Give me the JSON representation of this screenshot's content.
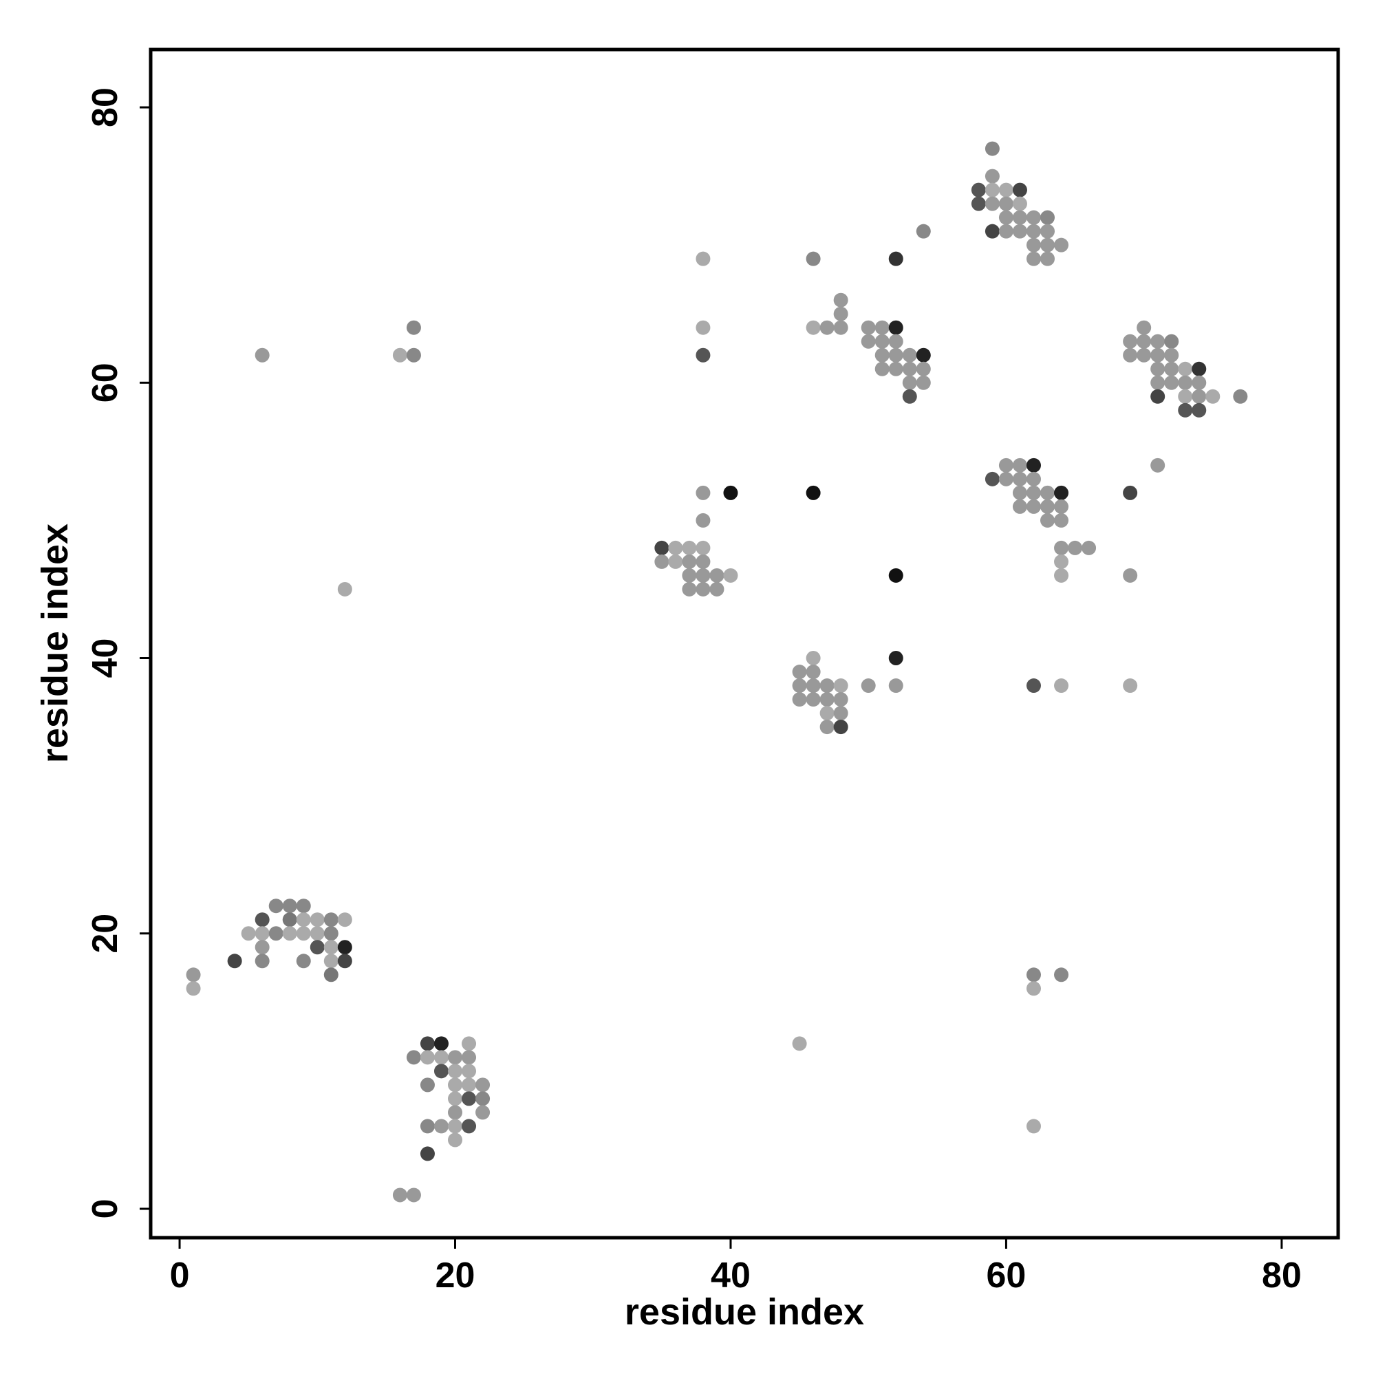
{
  "chart_data": {
    "type": "scatter",
    "xlabel": "residue index",
    "ylabel": "residue index",
    "xlim": [
      -2.1,
      84.1
    ],
    "ylim": [
      -2.1,
      84.2
    ],
    "xticks": [
      0,
      20,
      40,
      60,
      80
    ],
    "yticks": [
      0,
      20,
      40,
      60,
      80
    ],
    "x": [
      59,
      59,
      58,
      59,
      60,
      61,
      58,
      59,
      60,
      61,
      60,
      61,
      62,
      63,
      54,
      59,
      60,
      61,
      62,
      63,
      62,
      63,
      64,
      38,
      46,
      52,
      62,
      63,
      48,
      48,
      17,
      38,
      46,
      47,
      48,
      50,
      51,
      52,
      70,
      50,
      51,
      52,
      69,
      70,
      71,
      72,
      6,
      16,
      17,
      38,
      51,
      52,
      53,
      54,
      69,
      70,
      71,
      72,
      51,
      52,
      53,
      54,
      71,
      72,
      73,
      74,
      53,
      54,
      71,
      72,
      73,
      74,
      53,
      71,
      73,
      74,
      75,
      77,
      73,
      74,
      60,
      61,
      62,
      71,
      59,
      60,
      61,
      62,
      38,
      40,
      46,
      61,
      62,
      63,
      64,
      69,
      61,
      62,
      63,
      64,
      38,
      63,
      64,
      35,
      36,
      37,
      38,
      64,
      65,
      66,
      35,
      36,
      37,
      38,
      64,
      37,
      38,
      39,
      40,
      52,
      64,
      69,
      12,
      37,
      38,
      39,
      46,
      52,
      45,
      46,
      45,
      46,
      47,
      48,
      50,
      52,
      62,
      64,
      69,
      45,
      46,
      47,
      48,
      47,
      48,
      47,
      48,
      7,
      8,
      9,
      6,
      8,
      9,
      10,
      11,
      12,
      5,
      6,
      7,
      8,
      9,
      10,
      11,
      6,
      10,
      11,
      12,
      4,
      6,
      9,
      11,
      12,
      1,
      11,
      62,
      64,
      1,
      62,
      18,
      19,
      21,
      45,
      17,
      18,
      19,
      20,
      21,
      19,
      20,
      21,
      18,
      20,
      21,
      22,
      20,
      21,
      22,
      20,
      22,
      18,
      19,
      20,
      21,
      62,
      20,
      18,
      16,
      17
    ],
    "values": [
      77,
      75,
      74,
      74,
      74,
      74,
      73,
      73,
      73,
      73,
      72,
      72,
      72,
      72,
      71,
      71,
      71,
      71,
      71,
      71,
      70,
      70,
      70,
      69,
      69,
      69,
      69,
      69,
      66,
      65,
      64,
      64,
      64,
      64,
      64,
      64,
      64,
      64,
      64,
      63,
      63,
      63,
      63,
      63,
      63,
      63,
      62,
      62,
      62,
      62,
      62,
      62,
      62,
      62,
      62,
      62,
      62,
      62,
      61,
      61,
      61,
      61,
      61,
      61,
      61,
      61,
      60,
      60,
      60,
      60,
      60,
      60,
      59,
      59,
      59,
      59,
      59,
      59,
      58,
      58,
      54,
      54,
      54,
      54,
      53,
      53,
      53,
      53,
      52,
      52,
      52,
      52,
      52,
      52,
      52,
      52,
      51,
      51,
      51,
      51,
      50,
      50,
      50,
      48,
      48,
      48,
      48,
      48,
      48,
      48,
      47,
      47,
      47,
      47,
      47,
      46,
      46,
      46,
      46,
      46,
      46,
      46,
      45,
      45,
      45,
      45,
      40,
      40,
      39,
      39,
      38,
      38,
      38,
      38,
      38,
      38,
      38,
      38,
      38,
      37,
      37,
      37,
      37,
      36,
      36,
      35,
      35,
      22,
      22,
      22,
      21,
      21,
      21,
      21,
      21,
      21,
      20,
      20,
      20,
      20,
      20,
      20,
      20,
      19,
      19,
      19,
      19,
      18,
      18,
      18,
      18,
      18,
      17,
      17,
      17,
      17,
      16,
      16,
      12,
      12,
      12,
      12,
      11,
      11,
      11,
      11,
      11,
      10,
      10,
      10,
      9,
      9,
      9,
      9,
      8,
      8,
      8,
      7,
      7,
      6,
      6,
      6,
      6,
      6,
      5,
      4,
      1,
      1
    ],
    "colors": [
      "#888",
      "#999",
      "#555",
      "#aaa",
      "#aaa",
      "#444",
      "#555",
      "#999",
      "#999",
      "#aaa",
      "#999",
      "#999",
      "#999",
      "#888",
      "#888",
      "#444",
      "#999",
      "#999",
      "#999",
      "#999",
      "#999",
      "#999",
      "#999",
      "#aaa",
      "#888",
      "#333",
      "#999",
      "#999",
      "#999",
      "#999",
      "#888",
      "#aaa",
      "#aaa",
      "#999",
      "#999",
      "#999",
      "#999",
      "#222",
      "#999",
      "#999",
      "#999",
      "#999",
      "#999",
      "#999",
      "#999",
      "#888",
      "#999",
      "#aaa",
      "#888",
      "#555",
      "#999",
      "#999",
      "#999",
      "#222",
      "#999",
      "#999",
      "#999",
      "#999",
      "#999",
      "#999",
      "#999",
      "#999",
      "#999",
      "#999",
      "#aaa",
      "#333",
      "#999",
      "#999",
      "#999",
      "#999",
      "#999",
      "#999",
      "#555",
      "#444",
      "#aaa",
      "#999",
      "#aaa",
      "#888",
      "#555",
      "#555",
      "#999",
      "#999",
      "#222",
      "#999",
      "#555",
      "#999",
      "#999",
      "#999",
      "#999",
      "#111",
      "#111",
      "#999",
      "#999",
      "#999",
      "#222",
      "#444",
      "#999",
      "#999",
      "#999",
      "#999",
      "#999",
      "#999",
      "#999",
      "#444",
      "#aaa",
      "#aaa",
      "#aaa",
      "#999",
      "#999",
      "#999",
      "#999",
      "#aaa",
      "#999",
      "#999",
      "#aaa",
      "#999",
      "#999",
      "#999",
      "#aaa",
      "#111",
      "#aaa",
      "#999",
      "#aaa",
      "#999",
      "#999",
      "#999",
      "#aaa",
      "#222",
      "#999",
      "#999",
      "#999",
      "#999",
      "#999",
      "#aaa",
      "#999",
      "#999",
      "#555",
      "#aaa",
      "#aaa",
      "#999",
      "#999",
      "#999",
      "#999",
      "#aaa",
      "#999",
      "#999",
      "#444",
      "#888",
      "#888",
      "#888",
      "#555",
      "#777",
      "#aaa",
      "#aaa",
      "#888",
      "#aaa",
      "#aaa",
      "#aaa",
      "#888",
      "#aaa",
      "#aaa",
      "#aaa",
      "#888",
      "#999",
      "#555",
      "#aaa",
      "#222",
      "#444",
      "#888",
      "#888",
      "#aaa",
      "#444",
      "#999",
      "#777",
      "#888",
      "#888",
      "#aaa",
      "#aaa",
      "#444",
      "#222",
      "#aaa",
      "#aaa",
      "#888",
      "#aaa",
      "#aaa",
      "#999",
      "#999",
      "#555",
      "#aaa",
      "#aaa",
      "#888",
      "#aaa",
      "#aaa",
      "#999",
      "#aaa",
      "#555",
      "#888",
      "#999",
      "#999",
      "#888",
      "#999",
      "#aaa",
      "#555",
      "#aaa",
      "#aaa",
      "#444",
      "#999",
      "#999"
    ]
  }
}
